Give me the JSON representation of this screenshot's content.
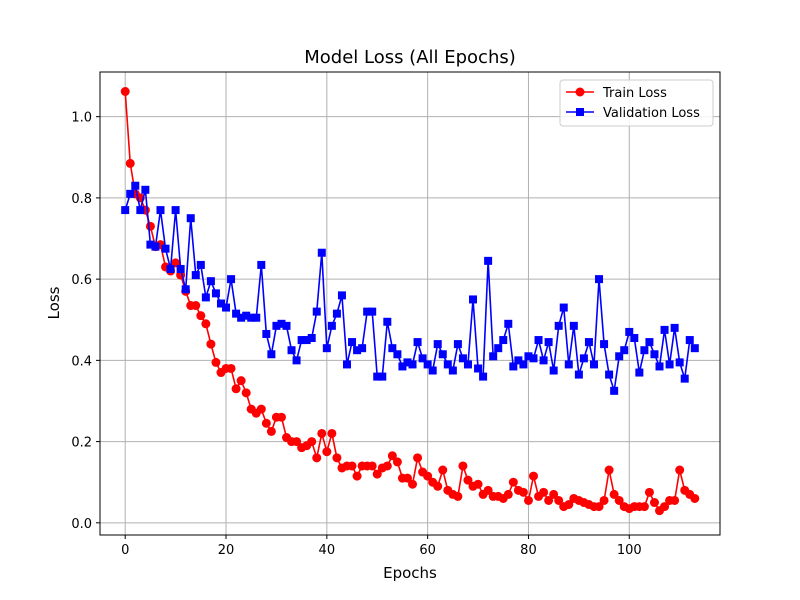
{
  "chart_data": {
    "type": "line",
    "title": "Model Loss (All Epochs)",
    "xlabel": "Epochs",
    "ylabel": "Loss",
    "xlim": [
      -5,
      118
    ],
    "ylim": [
      -0.03,
      1.11
    ],
    "x_ticks": [
      0,
      20,
      40,
      60,
      80,
      100
    ],
    "y_ticks": [
      0.0,
      0.2,
      0.4,
      0.6,
      0.8,
      1.0
    ],
    "grid": true,
    "legend_position": "top-right",
    "series": [
      {
        "name": "Train Loss",
        "color": "#ff0000",
        "marker": "circle",
        "values": [
          1.062,
          0.885,
          0.81,
          0.8,
          0.77,
          0.73,
          0.68,
          0.685,
          0.63,
          0.62,
          0.64,
          0.61,
          0.57,
          0.535,
          0.535,
          0.51,
          0.49,
          0.44,
          0.395,
          0.37,
          0.38,
          0.38,
          0.33,
          0.35,
          0.32,
          0.28,
          0.27,
          0.28,
          0.245,
          0.225,
          0.26,
          0.26,
          0.21,
          0.2,
          0.2,
          0.185,
          0.19,
          0.2,
          0.16,
          0.22,
          0.175,
          0.22,
          0.16,
          0.135,
          0.14,
          0.14,
          0.115,
          0.14,
          0.14,
          0.14,
          0.12,
          0.135,
          0.14,
          0.165,
          0.15,
          0.11,
          0.11,
          0.095,
          0.16,
          0.125,
          0.115,
          0.1,
          0.09,
          0.13,
          0.08,
          0.07,
          0.065,
          0.14,
          0.105,
          0.09,
          0.095,
          0.07,
          0.08,
          0.065,
          0.065,
          0.06,
          0.07,
          0.1,
          0.08,
          0.075,
          0.055,
          0.115,
          0.065,
          0.075,
          0.055,
          0.07,
          0.055,
          0.04,
          0.045,
          0.06,
          0.055,
          0.05,
          0.045,
          0.04,
          0.04,
          0.055,
          0.13,
          0.07,
          0.055,
          0.04,
          0.035,
          0.04,
          0.04,
          0.04,
          0.075,
          0.05,
          0.03,
          0.04,
          0.055,
          0.055,
          0.13,
          0.08,
          0.07,
          0.06
        ]
      },
      {
        "name": "Validation Loss",
        "color": "#0000ff",
        "marker": "square",
        "values": [
          0.77,
          0.81,
          0.83,
          0.77,
          0.82,
          0.685,
          0.68,
          0.77,
          0.675,
          0.625,
          0.77,
          0.625,
          0.575,
          0.75,
          0.61,
          0.635,
          0.555,
          0.595,
          0.565,
          0.54,
          0.53,
          0.6,
          0.515,
          0.505,
          0.51,
          0.505,
          0.505,
          0.635,
          0.465,
          0.415,
          0.485,
          0.49,
          0.485,
          0.425,
          0.4,
          0.45,
          0.45,
          0.455,
          0.52,
          0.665,
          0.43,
          0.485,
          0.515,
          0.56,
          0.39,
          0.445,
          0.425,
          0.43,
          0.52,
          0.52,
          0.36,
          0.36,
          0.495,
          0.43,
          0.415,
          0.385,
          0.395,
          0.39,
          0.445,
          0.405,
          0.39,
          0.375,
          0.44,
          0.415,
          0.39,
          0.375,
          0.44,
          0.405,
          0.39,
          0.55,
          0.38,
          0.36,
          0.645,
          0.41,
          0.43,
          0.45,
          0.49,
          0.385,
          0.4,
          0.39,
          0.41,
          0.405,
          0.45,
          0.4,
          0.445,
          0.375,
          0.485,
          0.53,
          0.39,
          0.485,
          0.365,
          0.405,
          0.445,
          0.39,
          0.6,
          0.44,
          0.365,
          0.325,
          0.41,
          0.425,
          0.47,
          0.455,
          0.37,
          0.425,
          0.445,
          0.415,
          0.385,
          0.475,
          0.39,
          0.48,
          0.395,
          0.355,
          0.45,
          0.43
        ]
      }
    ]
  }
}
